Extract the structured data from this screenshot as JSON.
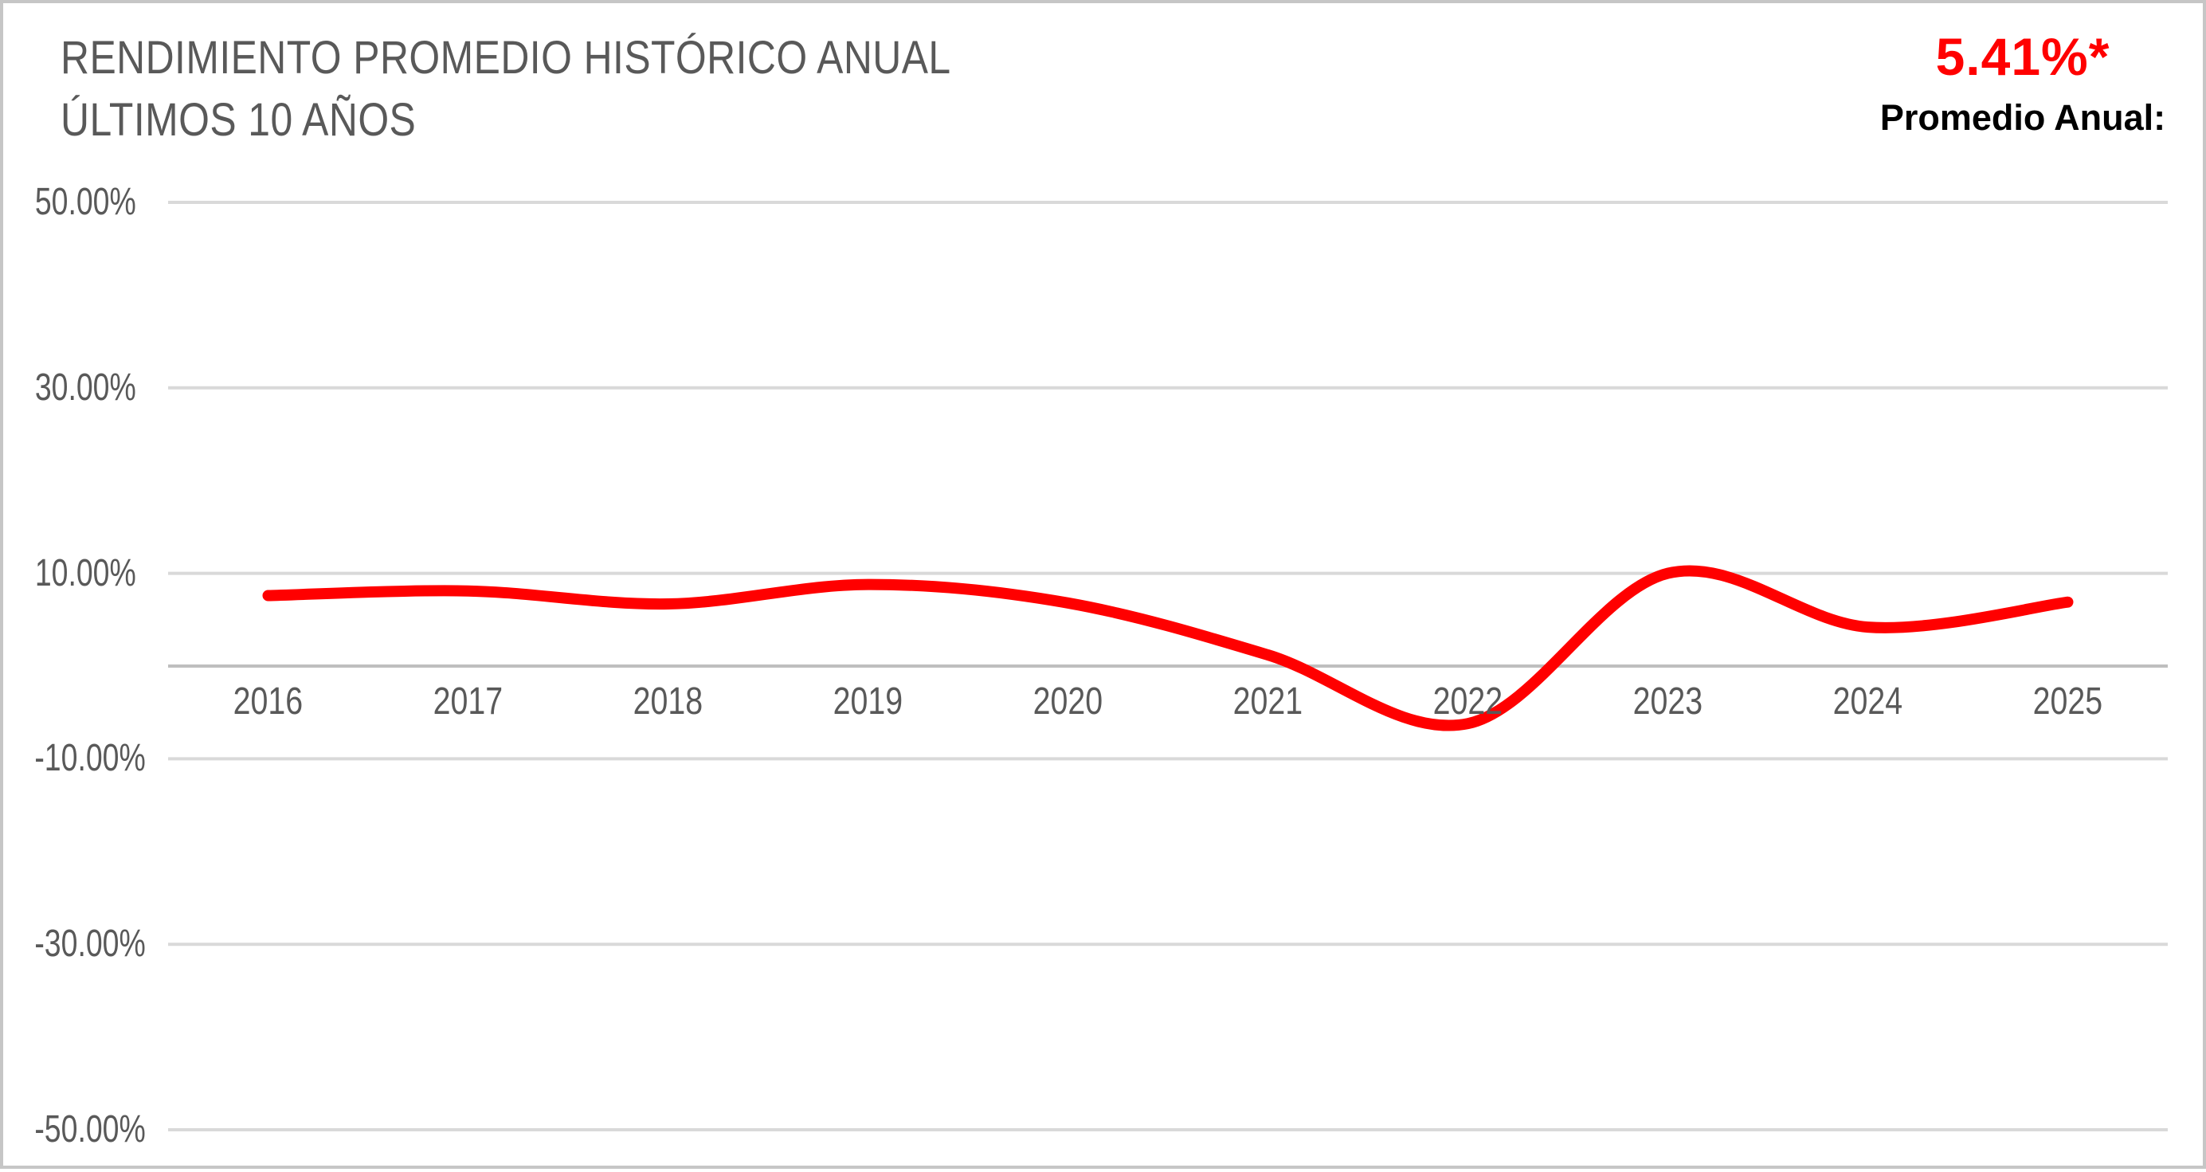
{
  "header": {
    "title_line1": "RENDIMIENTO PROMEDIO HISTÓRICO ANUAL",
    "title_line2": "ÚLTIMOS 10 AÑOS",
    "average_value": "5.41%*",
    "average_label": "Promedio Anual:"
  },
  "colors": {
    "line": "#ff0000",
    "average_value_text": "#ff0000",
    "average_label_text": "#000000",
    "label_text": "#595959",
    "gridline": "#d9d9d9",
    "axis_line": "#bfbfbf",
    "canvas_border": "#c6c6c6",
    "background": "#ffffff"
  },
  "chart_data": {
    "type": "line",
    "title": "RENDIMIENTO PROMEDIO HISTÓRICO ANUAL ÚLTIMOS 10 AÑOS",
    "line_style": "smooth",
    "categories": [
      "2016",
      "2017",
      "2018",
      "2019",
      "2020",
      "2021",
      "2022",
      "2023",
      "2024",
      "2025"
    ],
    "values": [
      7.6,
      8.1,
      6.7,
      8.8,
      6.8,
      1.2,
      -6.2,
      10.0,
      4.2,
      6.9
    ],
    "value_unit": "%",
    "average_annual": "5.41%*",
    "xlabel": "",
    "ylabel": "",
    "ylim": [
      -50,
      50
    ],
    "y_ticks": [
      {
        "value": 50,
        "label": "50.00%"
      },
      {
        "value": 30,
        "label": "30.00%"
      },
      {
        "value": 10,
        "label": "10.00%"
      },
      {
        "value": -10,
        "label": "-10.00%"
      },
      {
        "value": -30,
        "label": "-30.00%"
      },
      {
        "value": -50,
        "label": "-50.00%"
      }
    ],
    "grid": true,
    "legend_position": "none"
  }
}
